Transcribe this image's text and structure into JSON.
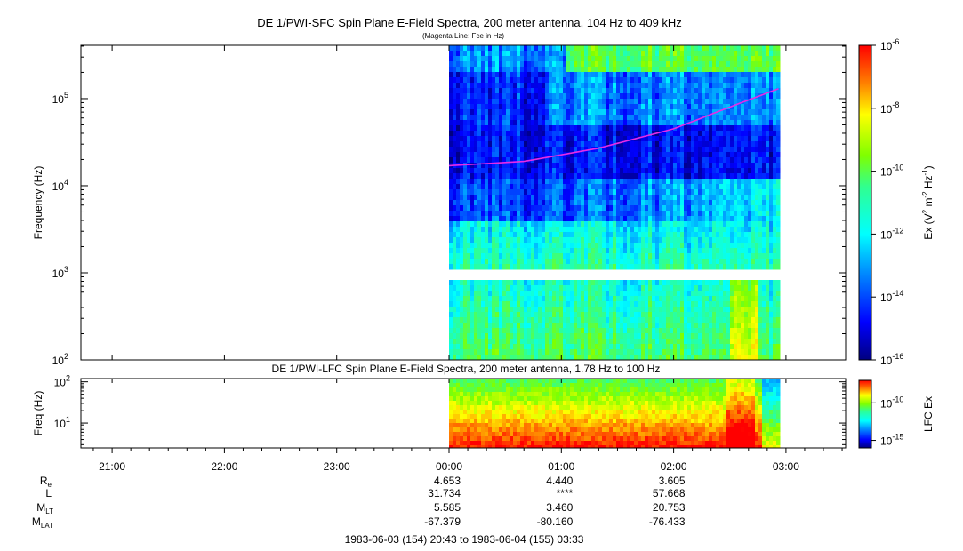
{
  "chart_data": [
    {
      "type": "heatmap",
      "title": "DE 1/PWI-SFC  Spin Plane E-Field Spectra, 200 meter antenna, 104 Hz to 409 kHz",
      "subtitle": "(Magenta Line: Fce in Hz)",
      "ylabel": "Frequency (Hz)",
      "yscale": "log",
      "ylim": [
        100,
        409000
      ],
      "y_ticks": [
        {
          "value": 100,
          "base": "10",
          "exp": "2"
        },
        {
          "value": 1000,
          "base": "10",
          "exp": "3"
        },
        {
          "value": 10000,
          "base": "10",
          "exp": "4"
        },
        {
          "value": 100000,
          "base": "10",
          "exp": "5"
        }
      ],
      "data_time_range": [
        "00:00",
        "02:56"
      ],
      "data_gap_hz": [
        900,
        1000
      ],
      "colorbar": {
        "label_prefix": "Ex (V",
        "label_sup1": "2",
        "label_mid": " m",
        "label_sup2": "-2",
        "label_mid2": " Hz",
        "label_sup3": "-1",
        "label_suffix": ")",
        "scale": "log",
        "range": [
          1e-16,
          1e-06
        ],
        "ticks": [
          {
            "value": 1e-06,
            "base": "10",
            "exp": "-6"
          },
          {
            "value": 1e-08,
            "base": "10",
            "exp": "-8"
          },
          {
            "value": 1e-10,
            "base": "10",
            "exp": "-10"
          },
          {
            "value": 1e-12,
            "base": "10",
            "exp": "-12"
          },
          {
            "value": 1e-14,
            "base": "10",
            "exp": "-14"
          },
          {
            "value": 1e-16,
            "base": "10",
            "exp": "-16"
          }
        ]
      },
      "overlay_line": {
        "name": "Fce",
        "color": "#e62be6",
        "points": [
          {
            "t": "00:00",
            "hz": 17000
          },
          {
            "t": "00:40",
            "hz": 19000
          },
          {
            "t": "01:20",
            "hz": 27000
          },
          {
            "t": "02:00",
            "hz": 45000
          },
          {
            "t": "02:30",
            "hz": 80000
          },
          {
            "t": "02:56",
            "hz": 130000
          }
        ]
      }
    },
    {
      "type": "heatmap",
      "title": "DE 1/PWI-LFC  Spin Plane E-Field Spectra, 200 meter antenna, 1.78 Hz to 100 Hz",
      "ylabel": "Freq (Hz)",
      "yscale": "log",
      "ylim": [
        2.5,
        120
      ],
      "y_ticks": [
        {
          "value": 10,
          "base": "10",
          "exp": "1"
        },
        {
          "value": 100,
          "base": "10",
          "exp": "2"
        }
      ],
      "data_time_range": [
        "00:00",
        "02:56"
      ],
      "colorbar": {
        "label": "LFC Ex",
        "scale": "log",
        "range": [
          1e-16,
          1e-07
        ],
        "ticks": [
          {
            "value": 1e-10,
            "base": "10",
            "exp": "-10"
          },
          {
            "value": 1e-15,
            "base": "10",
            "exp": "-15"
          }
        ]
      }
    }
  ],
  "x_axis": {
    "ticks": [
      "21:00",
      "22:00",
      "23:00",
      "00:00",
      "01:00",
      "02:00",
      "03:00"
    ]
  },
  "ephemeris": {
    "labels": {
      "re": {
        "main": "R",
        "sub": "e"
      },
      "l": {
        "main": "L",
        "sub": ""
      },
      "mlt": {
        "main": "M",
        "sub": "LT"
      },
      "mlat": {
        "main": "M",
        "sub": "LAT"
      }
    },
    "columns": [
      {
        "tick": "00:00",
        "re": "4.653",
        "l": "31.734",
        "mlt": "5.585",
        "mlat": "-67.379"
      },
      {
        "tick": "01:00",
        "re": "4.440",
        "l": "****",
        "mlt": "3.460",
        "mlat": "-80.160"
      },
      {
        "tick": "02:00",
        "re": "3.605",
        "l": "57.668",
        "mlt": "20.753",
        "mlat": "-76.433"
      }
    ]
  },
  "footer": "1983-06-03 (154) 20:43 to 1983-06-04 (155) 03:33"
}
